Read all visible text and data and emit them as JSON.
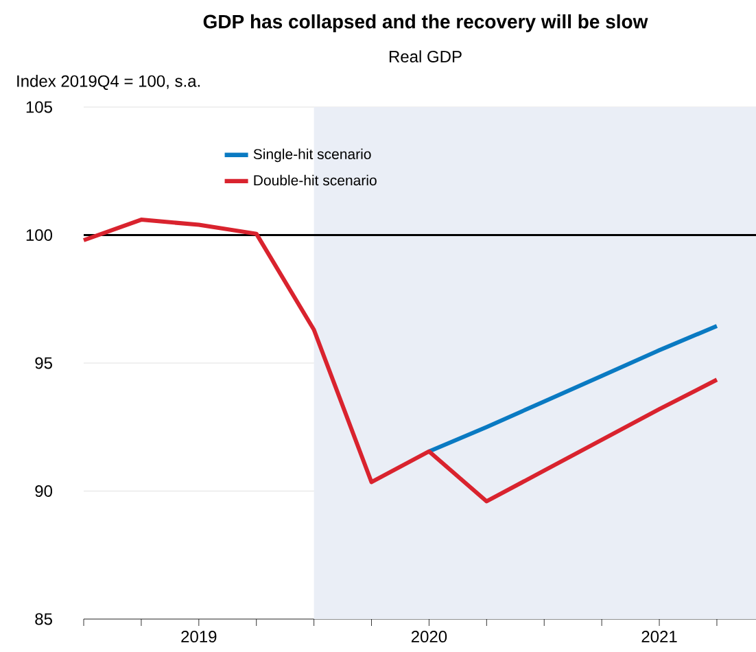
{
  "chart_data": {
    "type": "line",
    "title": "GDP has collapsed and the recovery will be slow",
    "subtitle": "Real GDP",
    "ylabel": "Index 2019Q4 = 100, s.a.",
    "xlim": [
      2019.0,
      2021.92
    ],
    "ylim": [
      85,
      105
    ],
    "xticks": [
      {
        "value": 2019.0,
        "label": null
      },
      {
        "value": 2019.25,
        "label": null
      },
      {
        "value": 2019.5,
        "label": "2019"
      },
      {
        "value": 2019.75,
        "label": null
      },
      {
        "value": 2020.0,
        "label": null
      },
      {
        "value": 2020.25,
        "label": null
      },
      {
        "value": 2020.5,
        "label": "2020"
      },
      {
        "value": 2020.75,
        "label": null
      },
      {
        "value": 2021.0,
        "label": null
      },
      {
        "value": 2021.25,
        "label": null
      },
      {
        "value": 2021.5,
        "label": "2021"
      },
      {
        "value": 2021.75,
        "label": null
      }
    ],
    "yticks": [
      85,
      90,
      95,
      100,
      105
    ],
    "grid": "y",
    "legend": "top left",
    "marker": "none",
    "line_style": "solid",
    "bands": [
      {
        "axis": "x",
        "from": 2020.0,
        "to": 2021.92,
        "color": "#eaeef6"
      }
    ],
    "ref_lines": [
      {
        "axis": "y",
        "value": 100,
        "color": "#000000"
      }
    ],
    "series": [
      {
        "name": "Single-hit scenario",
        "color": "#0a7ac2",
        "x": [
          2020.5,
          2020.75,
          2021.0,
          2021.25,
          2021.5,
          2021.75
        ],
        "values": [
          91.55,
          92.5,
          93.5,
          94.5,
          95.5,
          96.45
        ]
      },
      {
        "name": "Double-hit scenario",
        "color": "#d9232e",
        "x": [
          2019.0,
          2019.25,
          2019.5,
          2019.75,
          2020.0,
          2020.25,
          2020.5,
          2020.75,
          2021.0,
          2021.25,
          2021.5,
          2021.75
        ],
        "values": [
          99.8,
          100.6,
          100.4,
          100.05,
          96.3,
          90.35,
          91.55,
          89.6,
          90.8,
          92.0,
          93.2,
          94.35
        ]
      }
    ]
  }
}
